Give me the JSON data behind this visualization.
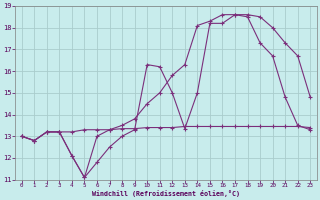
{
  "xlabel": "Windchill (Refroidissement éolien,°C)",
  "bg_color": "#c8ecec",
  "grid_color": "#aacccc",
  "line_color": "#7b2f7b",
  "xlim": [
    -0.5,
    23.5
  ],
  "ylim": [
    11,
    19
  ],
  "xticks": [
    0,
    1,
    2,
    3,
    4,
    5,
    6,
    7,
    8,
    9,
    10,
    11,
    12,
    13,
    14,
    15,
    16,
    17,
    18,
    19,
    20,
    21,
    22,
    23
  ],
  "yticks": [
    11,
    12,
    13,
    14,
    15,
    16,
    17,
    18,
    19
  ],
  "series1_x": [
    0,
    1,
    2,
    3,
    4,
    5,
    6,
    7,
    8,
    9,
    10,
    11,
    12,
    13,
    14,
    15,
    16,
    17,
    18,
    19,
    20,
    21,
    22,
    23
  ],
  "series1_y": [
    13.0,
    12.8,
    13.2,
    13.2,
    13.2,
    13.3,
    13.3,
    13.3,
    13.35,
    13.35,
    13.4,
    13.4,
    13.4,
    13.45,
    13.45,
    13.45,
    13.45,
    13.45,
    13.45,
    13.45,
    13.45,
    13.45,
    13.45,
    13.4
  ],
  "series2_x": [
    0,
    1,
    2,
    3,
    4,
    5,
    6,
    7,
    8,
    9,
    10,
    11,
    12,
    13,
    14,
    15,
    16,
    17,
    18,
    19,
    20,
    21,
    22,
    23
  ],
  "series2_y": [
    13.0,
    12.8,
    13.2,
    13.2,
    12.1,
    11.1,
    11.8,
    12.5,
    13.0,
    13.3,
    16.3,
    16.2,
    15.0,
    13.35,
    15.0,
    18.2,
    18.2,
    18.6,
    18.6,
    18.5,
    18.0,
    17.3,
    16.7,
    14.8
  ],
  "series3_x": [
    0,
    1,
    2,
    3,
    4,
    5,
    6,
    7,
    8,
    9,
    10,
    11,
    12,
    13,
    14,
    15,
    16,
    17,
    18,
    19,
    20,
    21,
    22,
    23
  ],
  "series3_y": [
    13.0,
    12.8,
    13.2,
    13.2,
    12.1,
    11.1,
    13.0,
    13.3,
    13.5,
    13.8,
    14.5,
    15.0,
    15.8,
    16.3,
    18.1,
    18.3,
    18.6,
    18.6,
    18.5,
    17.3,
    16.7,
    14.8,
    13.5,
    13.3
  ]
}
